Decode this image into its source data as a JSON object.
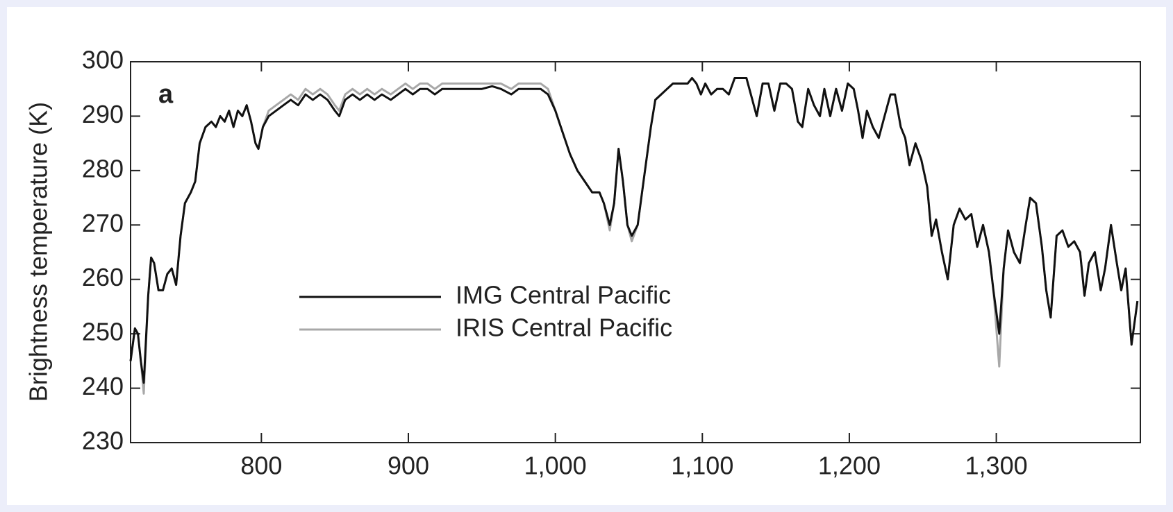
{
  "chart_data": {
    "type": "line",
    "panel_label": "a",
    "y_label": "Brightness temperature (K)",
    "x": [
      711,
      714,
      716,
      718,
      720,
      723,
      725,
      727,
      730,
      733,
      736,
      739,
      742,
      745,
      748,
      752,
      755,
      758,
      762,
      766,
      769,
      772,
      775,
      778,
      781,
      784,
      787,
      790,
      793,
      796,
      798,
      801,
      805,
      810,
      815,
      820,
      825,
      830,
      835,
      840,
      845,
      850,
      853,
      857,
      862,
      867,
      872,
      877,
      882,
      888,
      893,
      898,
      903,
      908,
      913,
      918,
      923,
      930,
      937,
      943,
      950,
      957,
      963,
      970,
      975,
      980,
      990,
      995,
      1000,
      1005,
      1010,
      1015,
      1020,
      1025,
      1030,
      1033,
      1037,
      1040,
      1043,
      1046,
      1049,
      1052,
      1056,
      1060,
      1065,
      1068,
      1072,
      1076,
      1080,
      1085,
      1090,
      1093,
      1096,
      1099,
      1102,
      1106,
      1110,
      1114,
      1118,
      1122,
      1126,
      1130,
      1134,
      1137,
      1141,
      1145,
      1149,
      1153,
      1157,
      1161,
      1165,
      1168,
      1172,
      1176,
      1180,
      1183,
      1187,
      1191,
      1195,
      1199,
      1203,
      1206,
      1209,
      1212,
      1216,
      1220,
      1224,
      1228,
      1231,
      1235,
      1238,
      1241,
      1245,
      1249,
      1253,
      1256,
      1259,
      1263,
      1267,
      1271,
      1275,
      1279,
      1283,
      1287,
      1291,
      1295,
      1298,
      1302,
      1305,
      1308,
      1312,
      1316,
      1320,
      1323,
      1327,
      1331,
      1334,
      1337,
      1341,
      1345,
      1349,
      1353,
      1357,
      1360,
      1363,
      1367,
      1371,
      1374,
      1378,
      1382,
      1385,
      1388,
      1392,
      1396
    ],
    "series": [
      {
        "name": "IRIS Central Pacific",
        "color": "#a8a8a8",
        "values": [
          245,
          251,
          250,
          245,
          239,
          257,
          264,
          263,
          258,
          258,
          261,
          262,
          259,
          268,
          274,
          276,
          278,
          285,
          288,
          289,
          288,
          290,
          289,
          291,
          288,
          291,
          290,
          292,
          289,
          285,
          284,
          288,
          291,
          292,
          293,
          294,
          293,
          295,
          294,
          295,
          294,
          292,
          291,
          294,
          295,
          294,
          295,
          294,
          295,
          294,
          295,
          296,
          295,
          296,
          296,
          295,
          296,
          296,
          296,
          296,
          296,
          296,
          296,
          295,
          296,
          296,
          296,
          295,
          291,
          287,
          283,
          280,
          278,
          276,
          276,
          274,
          269,
          274,
          284,
          278,
          270,
          267,
          270,
          278,
          288,
          293,
          294,
          295,
          296,
          296,
          296,
          297,
          296,
          294,
          296,
          294,
          295,
          295,
          294,
          297,
          297,
          297,
          293,
          290,
          296,
          296,
          291,
          296,
          296,
          295,
          289,
          288,
          295,
          292,
          290,
          295,
          290,
          295,
          291,
          296,
          295,
          291,
          286,
          291,
          288,
          286,
          290,
          294,
          294,
          288,
          286,
          281,
          285,
          282,
          277,
          268,
          271,
          265,
          260,
          270,
          273,
          271,
          272,
          266,
          270,
          265,
          258,
          244,
          262,
          269,
          265,
          263,
          270,
          275,
          274,
          266,
          258,
          253,
          268,
          269,
          266,
          267,
          265,
          257,
          263,
          265,
          258,
          262,
          270,
          263,
          258,
          262,
          248,
          256
        ]
      },
      {
        "name": "IMG Central Pacific",
        "color": "#111111",
        "values": [
          245,
          251,
          250,
          245,
          241,
          257,
          264,
          263,
          258,
          258,
          261,
          262,
          259,
          268,
          274,
          276,
          278,
          285,
          288,
          289,
          288,
          290,
          289,
          291,
          288,
          291,
          290,
          292,
          289,
          285,
          284,
          288,
          290,
          291,
          292,
          293,
          292,
          294,
          293,
          294,
          293,
          291,
          290,
          293,
          294,
          293,
          294,
          293,
          294,
          293,
          294,
          295,
          294,
          295,
          295,
          294,
          295,
          295,
          295,
          295,
          295,
          295.5,
          295,
          294,
          295,
          295,
          295,
          294,
          291,
          287,
          283,
          280,
          278,
          276,
          276,
          274,
          270,
          274,
          284,
          278,
          270,
          268,
          270,
          278,
          288,
          293,
          294,
          295,
          296,
          296,
          296,
          297,
          296,
          294,
          296,
          294,
          295,
          295,
          294,
          297,
          297,
          297,
          293,
          290,
          296,
          296,
          291,
          296,
          296,
          295,
          289,
          288,
          295,
          292,
          290,
          295,
          290,
          295,
          291,
          296,
          295,
          291,
          286,
          291,
          288,
          286,
          290,
          294,
          294,
          288,
          286,
          281,
          285,
          282,
          277,
          268,
          271,
          265,
          260,
          270,
          273,
          271,
          272,
          266,
          270,
          265,
          258,
          250,
          262,
          269,
          265,
          263,
          270,
          275,
          274,
          266,
          258,
          253,
          268,
          269,
          266,
          267,
          265,
          257,
          263,
          265,
          258,
          262,
          270,
          263,
          258,
          262,
          248,
          256
        ]
      }
    ],
    "xlim": [
      711,
      1398
    ],
    "ylim": [
      230,
      300
    ],
    "xticks": [
      800,
      900,
      {
        "value": 1000,
        "label": "1,000"
      },
      {
        "value": 1100,
        "label": "1,100"
      },
      {
        "value": 1200,
        "label": "1,200"
      },
      {
        "value": 1300,
        "label": "1,300"
      }
    ],
    "yticks": [
      230,
      240,
      250,
      260,
      270,
      280,
      290,
      300
    ]
  }
}
